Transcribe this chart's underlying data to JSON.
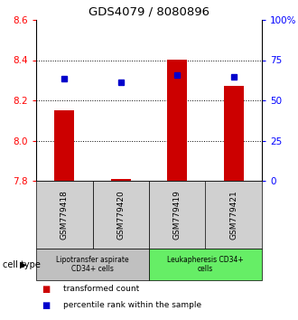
{
  "title": "GDS4079 / 8080896",
  "samples": [
    "GSM779418",
    "GSM779420",
    "GSM779419",
    "GSM779421"
  ],
  "transformed_counts": [
    8.15,
    7.81,
    8.4,
    8.27
  ],
  "percentile_ranks": [
    63.5,
    61.5,
    66.0,
    64.5
  ],
  "ymin": 7.8,
  "ymax": 8.6,
  "yticks": [
    7.8,
    8.0,
    8.2,
    8.4,
    8.6
  ],
  "right_yticks": [
    0,
    25,
    50,
    75,
    100
  ],
  "bar_color": "#cc0000",
  "dot_color": "#0000cc",
  "bar_width": 0.35,
  "cell_types": [
    {
      "label": "Lipotransfer aspirate\nCD34+ cells",
      "samples": [
        0,
        1
      ],
      "color": "#c0c0c0"
    },
    {
      "label": "Leukapheresis CD34+\ncells",
      "samples": [
        2,
        3
      ],
      "color": "#66ee66"
    }
  ],
  "legend_bar_label": "transformed count",
  "legend_dot_label": "percentile rank within the sample",
  "cell_type_label": "cell type",
  "grid_ticks": [
    8.0,
    8.2,
    8.4
  ]
}
